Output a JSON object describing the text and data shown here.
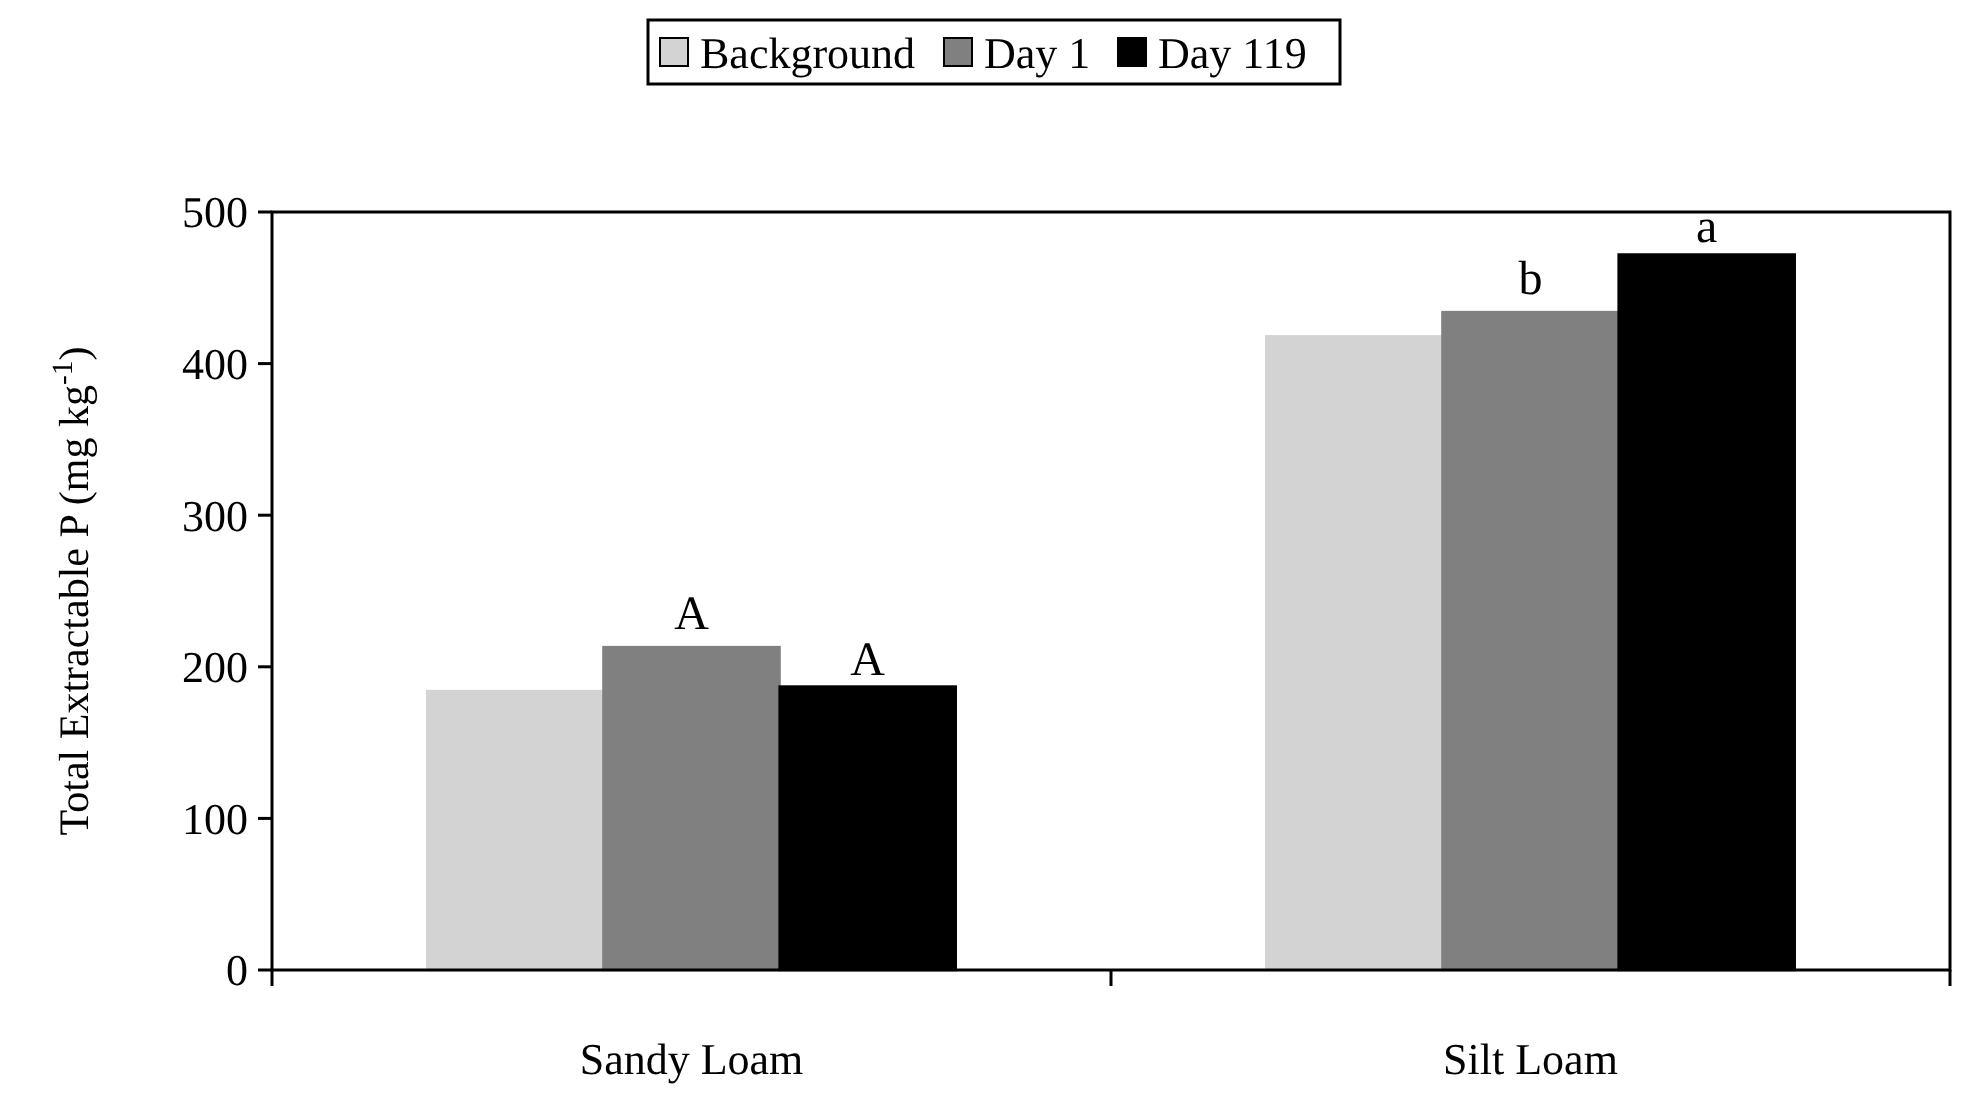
{
  "chart_data": {
    "type": "bar",
    "ylabel": "Total Extractable P (mg kg$^{-1}$)",
    "categories": [
      "Sandy Loam",
      "Silt Loam"
    ],
    "series": [
      {
        "name": "Background",
        "color": "#d3d3d3",
        "values": [
          184,
          418
        ]
      },
      {
        "name": "Day 1",
        "color": "#808080",
        "values": [
          213,
          434
        ]
      },
      {
        "name": "Day 119",
        "color": "#000000",
        "values": [
          187,
          472
        ]
      }
    ],
    "ylim": [
      0,
      500
    ],
    "yticks": [
      0,
      100,
      200,
      300,
      400,
      500
    ],
    "grid": false,
    "legend": "top",
    "annotations": [
      {
        "text": "A",
        "x": "Sandy Loam",
        "y": 213
      },
      "A",
      {
        "text": "b",
        "x": "Silt Loam",
        "y": 434
      },
      "a"
    ]
  }
}
